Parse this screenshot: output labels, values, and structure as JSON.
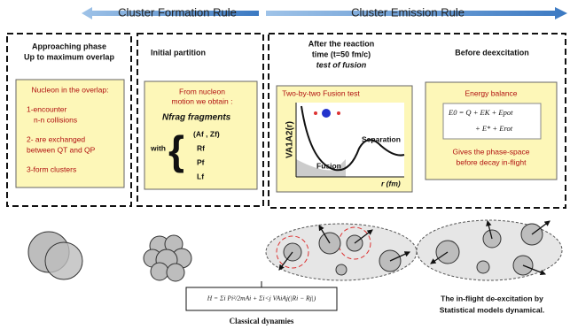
{
  "header": {
    "left": "Cluster Formation Rule",
    "right": "Cluster Emission Rule"
  },
  "panels": [
    {
      "title": [
        "Approaching phase",
        "Up to maximum overlap"
      ],
      "box": [
        "Nucleon in the overlap:",
        "1-encounter",
        "n-n collisions",
        "2- are exchanged",
        "between QT and QP",
        "3-form clusters"
      ]
    },
    {
      "title": [
        "Initial partition"
      ],
      "box": [
        "From nucleon",
        "motion we obtain :",
        "Nfrag fragments",
        "with",
        "(Af , Zf)",
        "Rf",
        "Pf",
        "Lf"
      ]
    },
    {
      "title": [
        "After the reaction",
        "time (t=50 fm/c)",
        "test of fusion"
      ],
      "box": [
        "Two-by-two Fusion test",
        "VA1A2(r)",
        "Separation",
        "Fusion",
        "r (fm)"
      ]
    },
    {
      "title": [
        "Before deexcitation"
      ],
      "box": [
        "Energy balance",
        "E0 = Q + EK + Epot",
        "+ E* + Erot",
        "Gives the phase-space",
        "before decay in-flight"
      ]
    }
  ],
  "bottom": {
    "formula": "H = Σi Pi²/2mAi + Σi<j VAiAj(|Ri − Rj|)",
    "caption": "Classical dynamies",
    "right": [
      "The in-flight de-excitation by",
      "Statistical models dynamical."
    ]
  }
}
